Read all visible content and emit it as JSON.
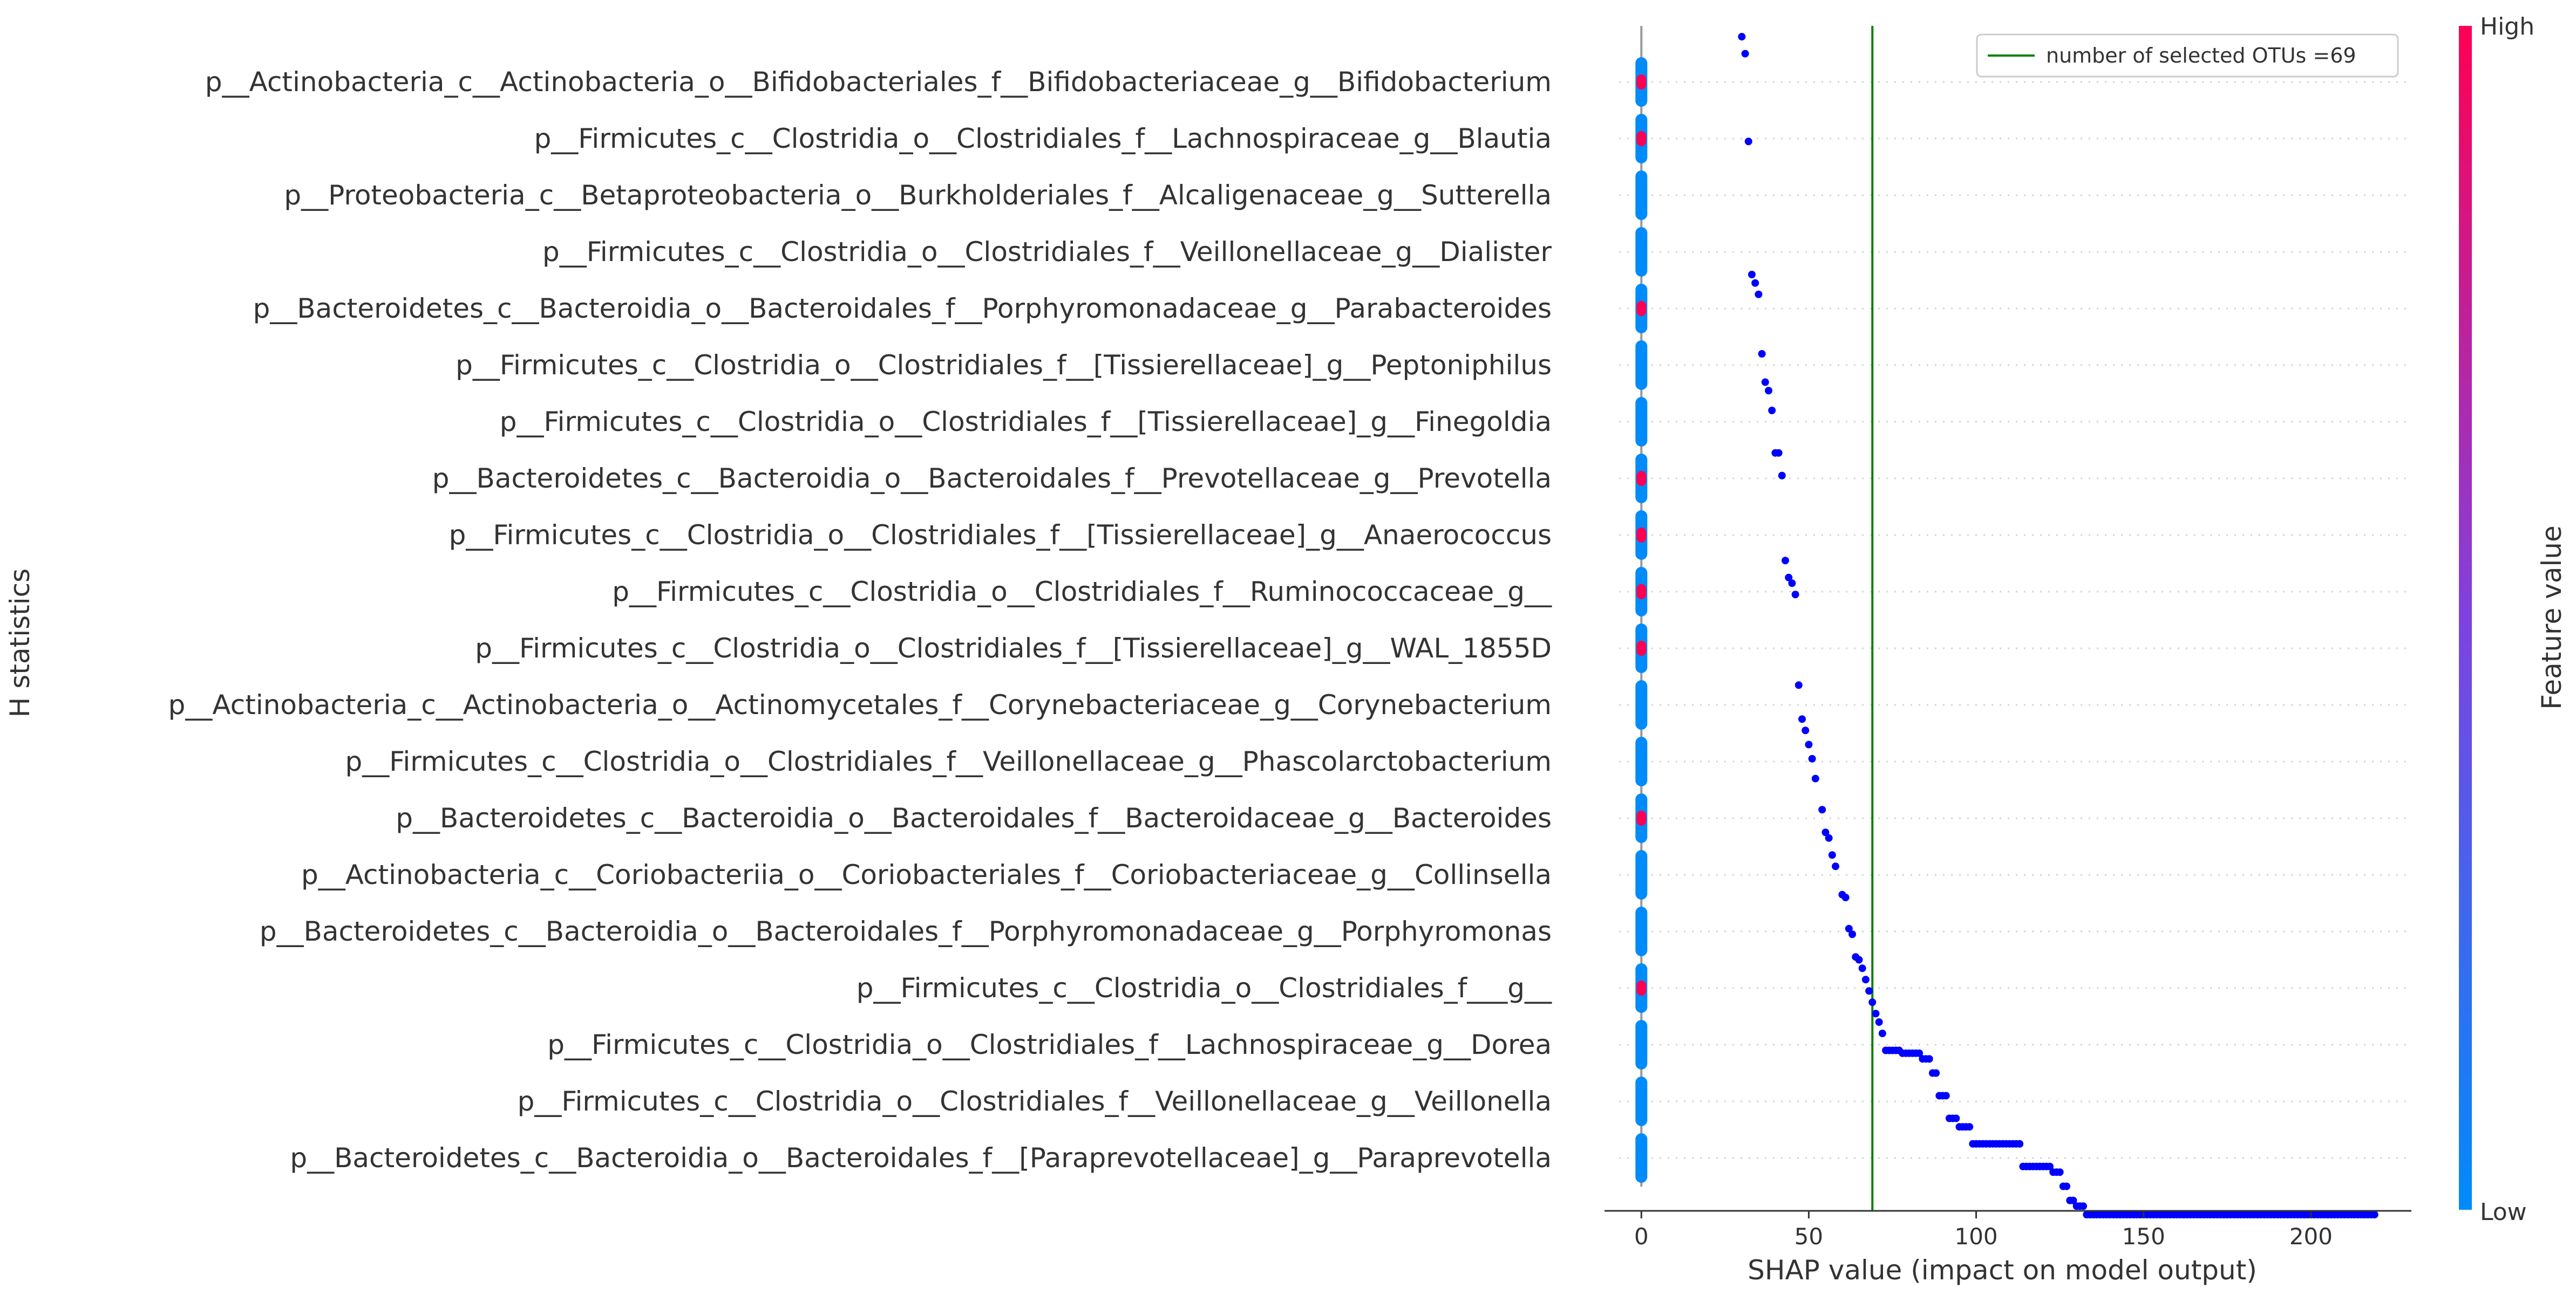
{
  "chart_data": {
    "type": "scatter",
    "subtype": "shap-beeswarm",
    "title": "",
    "xlabel": "SHAP value (impact on model output)",
    "ylabel": "H statistics",
    "xlim": [
      -11,
      230
    ],
    "xticks": [
      0,
      50,
      100,
      150,
      200
    ],
    "grid": "horizontal-dotted",
    "features": [
      "p__Actinobacteria_c__Actinobacteria_o__Bifidobacteriales_f__Bifidobacteriaceae_g__Bifidobacterium",
      "p__Firmicutes_c__Clostridia_o__Clostridiales_f__Lachnospiraceae_g__Blautia",
      "p__Proteobacteria_c__Betaproteobacteria_o__Burkholderiales_f__Alcaligenaceae_g__Sutterella",
      "p__Firmicutes_c__Clostridia_o__Clostridiales_f__Veillonellaceae_g__Dialister",
      "p__Bacteroidetes_c__Bacteroidia_o__Bacteroidales_f__Porphyromonadaceae_g__Parabacteroides",
      "p__Firmicutes_c__Clostridia_o__Clostridiales_f__[Tissierellaceae]_g__Peptoniphilus",
      "p__Firmicutes_c__Clostridia_o__Clostridiales_f__[Tissierellaceae]_g__Finegoldia",
      "p__Bacteroidetes_c__Bacteroidia_o__Bacteroidales_f__Prevotellaceae_g__Prevotella",
      "p__Firmicutes_c__Clostridia_o__Clostridiales_f__[Tissierellaceae]_g__Anaerococcus",
      "p__Firmicutes_c__Clostridia_o__Clostridiales_f__Ruminococcaceae_g__",
      "p__Firmicutes_c__Clostridia_o__Clostridiales_f__[Tissierellaceae]_g__WAL_1855D",
      "p__Actinobacteria_c__Actinobacteria_o__Actinomycetales_f__Corynebacteriaceae_g__Corynebacterium",
      "p__Firmicutes_c__Clostridia_o__Clostridiales_f__Veillonellaceae_g__Phascolarctobacterium",
      "p__Bacteroidetes_c__Bacteroidia_o__Bacteroidales_f__Bacteroidaceae_g__Bacteroides",
      "p__Actinobacteria_c__Coriobacteriia_o__Coriobacteriales_f__Coriobacteriaceae_g__Collinsella",
      "p__Bacteroidetes_c__Bacteroidia_o__Bacteroidales_f__Porphyromonadaceae_g__Porphyromonas",
      "p__Firmicutes_c__Clostridia_o__Clostridiales_f___g__",
      "p__Firmicutes_c__Clostridia_o__Clostridiales_f__Lachnospiraceae_g__Dorea",
      "p__Firmicutes_c__Clostridia_o__Clostridiales_f__Veillonellaceae_g__Veillonella",
      "p__Bacteroidetes_c__Bacteroidia_o__Bacteroidales_f__[Paraprevotellaceae]_g__Paraprevotella"
    ],
    "beeswarm_x": 0,
    "high_value_features": [
      0,
      1,
      4,
      7,
      8,
      9,
      10,
      13,
      16
    ],
    "curve_points": [
      [
        30,
        -0.8
      ],
      [
        31,
        -0.5
      ],
      [
        32,
        1.05
      ],
      [
        33,
        3.4
      ],
      [
        34,
        3.55
      ],
      [
        35,
        3.75
      ],
      [
        36,
        4.8
      ],
      [
        37,
        5.3
      ],
      [
        38,
        5.45
      ],
      [
        39,
        5.8
      ],
      [
        40,
        6.55
      ],
      [
        41,
        6.55
      ],
      [
        42,
        6.95
      ],
      [
        43,
        8.45
      ],
      [
        44,
        8.75
      ],
      [
        45,
        8.85
      ],
      [
        46,
        9.05
      ],
      [
        47,
        10.65
      ],
      [
        48,
        11.25
      ],
      [
        49,
        11.45
      ],
      [
        50,
        11.7
      ],
      [
        51,
        11.95
      ],
      [
        52,
        12.3
      ],
      [
        54,
        12.85
      ],
      [
        55,
        13.25
      ],
      [
        56,
        13.35
      ],
      [
        57,
        13.65
      ],
      [
        58,
        13.85
      ],
      [
        60,
        14.35
      ],
      [
        61,
        14.4
      ],
      [
        62,
        14.95
      ],
      [
        63,
        15.05
      ],
      [
        64,
        15.45
      ],
      [
        65,
        15.5
      ],
      [
        66,
        15.65
      ],
      [
        67,
        15.85
      ],
      [
        68,
        16.05
      ],
      [
        69,
        16.25
      ],
      [
        70,
        16.45
      ],
      [
        71,
        16.6
      ],
      [
        72,
        16.8
      ]
    ],
    "step_segments": [
      [
        73,
        77,
        17.1
      ],
      [
        78,
        83,
        17.15
      ],
      [
        84,
        86,
        17.25
      ],
      [
        87,
        88,
        17.5
      ],
      [
        89,
        91,
        17.9
      ],
      [
        92,
        94,
        18.3
      ],
      [
        95,
        98,
        18.45
      ],
      [
        99,
        113,
        18.75
      ],
      [
        114,
        122,
        19.15
      ],
      [
        123,
        125,
        19.25
      ],
      [
        126,
        127,
        19.5
      ],
      [
        128,
        129,
        19.75
      ],
      [
        130,
        132,
        19.85
      ],
      [
        133,
        219,
        20.0
      ]
    ],
    "vline": {
      "x": 69,
      "label": "number of selected OTUs =69",
      "color": "#008000"
    },
    "legend": {
      "entries": [
        "number of selected OTUs =69"
      ],
      "position": "top-right"
    },
    "colorbar": {
      "label": "Feature value",
      "high": "High",
      "low": "Low"
    }
  },
  "colors": {
    "low": "#008bfb",
    "high": "#ff0052",
    "curve": "#0000ff",
    "vline": "#008000",
    "grid": "#d4d4d4",
    "zero_line": "#999999"
  }
}
